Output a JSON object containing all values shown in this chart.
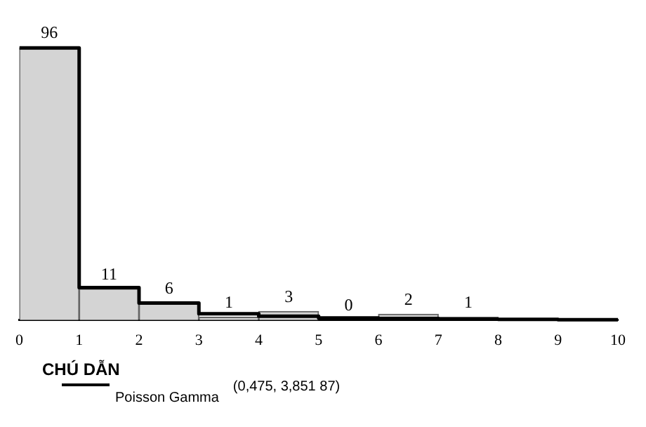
{
  "chart_data": {
    "type": "histogram",
    "bins": [
      0,
      1,
      2,
      3,
      4,
      5,
      6,
      7,
      8,
      9,
      10
    ],
    "values": [
      96,
      11,
      6,
      1,
      3,
      0,
      2,
      1,
      0,
      0
    ],
    "color": "#d4d4d4",
    "value_labels": [
      "96",
      "11",
      "6",
      "1",
      "3",
      "0",
      "2",
      "1",
      null,
      null
    ],
    "series": [
      {
        "name": "Poisson Gamma",
        "type": "step",
        "color": "#000000",
        "x": [
          0,
          1,
          2,
          3,
          4,
          5,
          6,
          7,
          8,
          9,
          10
        ],
        "values": [
          96,
          11.4,
          6,
          2.2,
          1.3,
          0.7,
          0.5,
          0.3,
          0.2,
          0.1,
          0.1
        ]
      }
    ],
    "xticks": [
      0,
      1,
      2,
      3,
      4,
      5,
      6,
      7,
      8,
      9,
      10
    ],
    "xlim": [
      0,
      10
    ],
    "tick_labels": "x",
    "grid": false,
    "marker": "none",
    "line_style": "solid",
    "legend": "bottom left",
    "legend_title": "CHÚ DẪN",
    "annotations": [
      "(0,475, 3,851 87)"
    ]
  }
}
